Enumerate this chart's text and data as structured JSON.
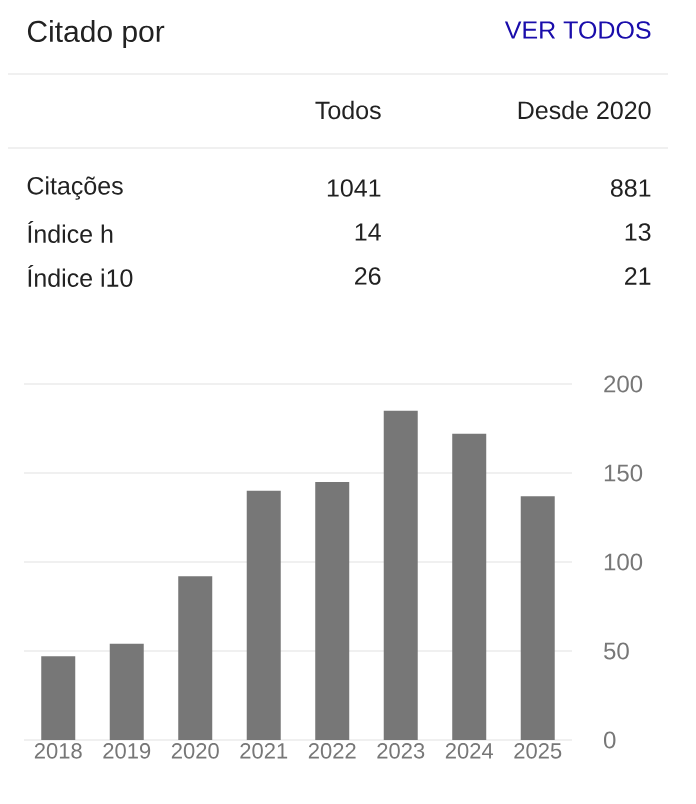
{
  "chart_data": [
    {
      "type": "other",
      "title": "Citado por",
      "annotations": [
        "VER TODOS",
        "Todos",
        "Desde 2020",
        "Citações",
        "1041",
        "881",
        "Índice h",
        "14",
        "13",
        "Índice i10",
        "26",
        "21"
      ]
    },
    {
      "type": "bar",
      "categories": [
        "2018",
        "2019",
        "2020",
        "2021",
        "2022",
        "2023",
        "2024",
        "2025"
      ],
      "values": [
        47,
        54,
        92,
        140,
        145,
        185,
        172,
        137
      ],
      "color": "#777777",
      "ylim": [
        0,
        200
      ],
      "yticks": [
        0,
        50,
        100,
        150,
        200
      ],
      "grid": "y"
    }
  ]
}
